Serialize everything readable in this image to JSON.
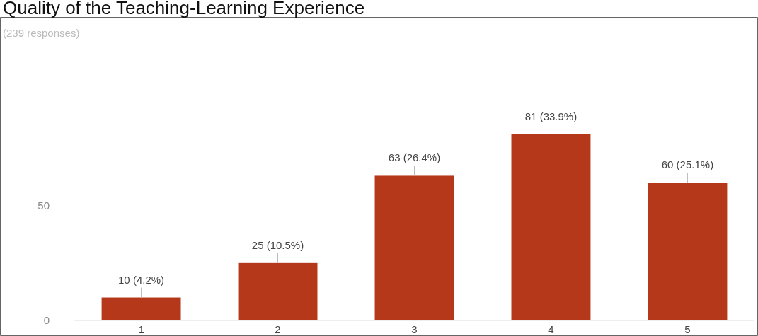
{
  "chart_data": {
    "type": "bar",
    "title": "Quality of the Teaching-Learning Experience",
    "subtitle": "(239 responses)",
    "categories": [
      "1",
      "2",
      "3",
      "4",
      "5"
    ],
    "values": [
      10,
      25,
      63,
      81,
      60
    ],
    "value_labels": [
      "10 (4.2%)",
      "25 (10.5%)",
      "63 (26.4%)",
      "81 (33.9%)",
      "60 (25.1%)"
    ],
    "color": "#b5381a",
    "ylim": [
      0,
      81
    ],
    "yticks": [
      0,
      50
    ]
  }
}
